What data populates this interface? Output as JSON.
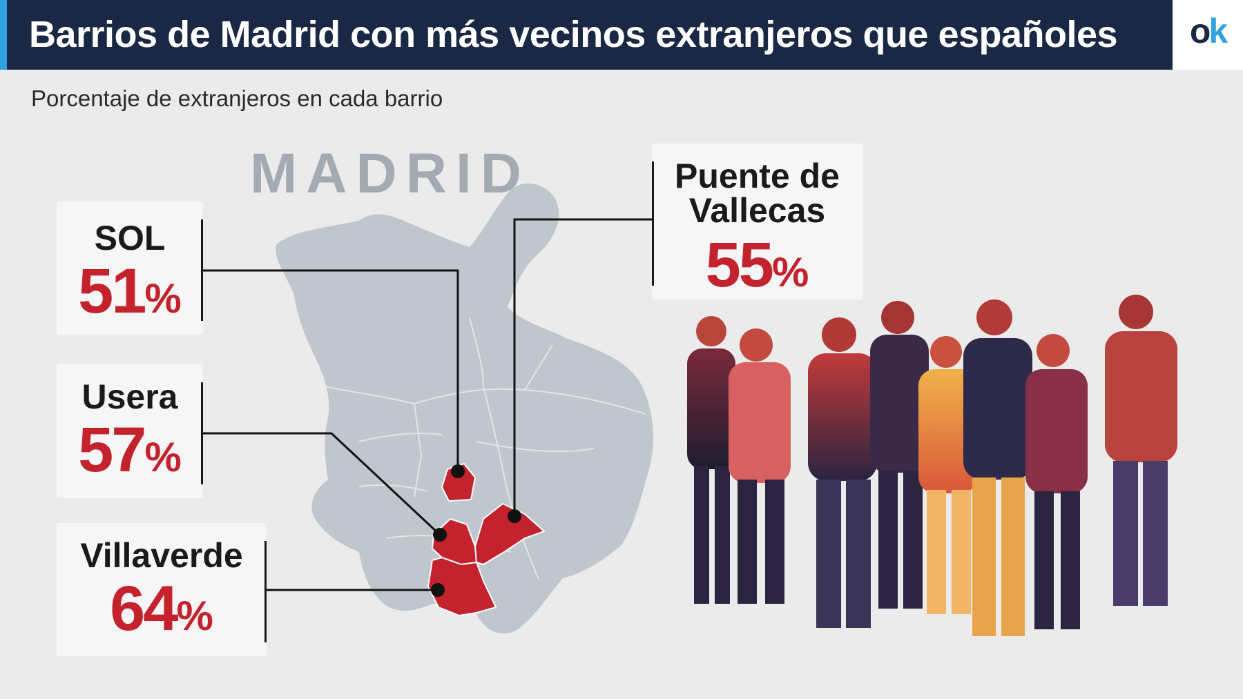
{
  "header": {
    "title": "Barrios de Madrid con más vecinos extranjeros que españoles",
    "logo_o": "o",
    "logo_k": "k"
  },
  "subtitle": "Porcentaje de extranjeros en cada barrio",
  "map": {
    "label": "MADRID"
  },
  "callouts": {
    "sol": {
      "name": "SOL",
      "value": "51",
      "unit": "%"
    },
    "usera": {
      "name": "Usera",
      "value": "57",
      "unit": "%"
    },
    "villaverde": {
      "name": "Villaverde",
      "value": "64",
      "unit": "%"
    },
    "vallecas": {
      "name_line1": "Puente de",
      "name_line2": "Vallecas",
      "value": "55",
      "unit": "%"
    }
  },
  "colors": {
    "header_bg": "#1b2845",
    "accent": "#2fa3e0",
    "highlight_red": "#c4222d",
    "map_gray": "#c0c6ce"
  },
  "photo": {
    "icon": "crowd-of-people-illustration"
  }
}
